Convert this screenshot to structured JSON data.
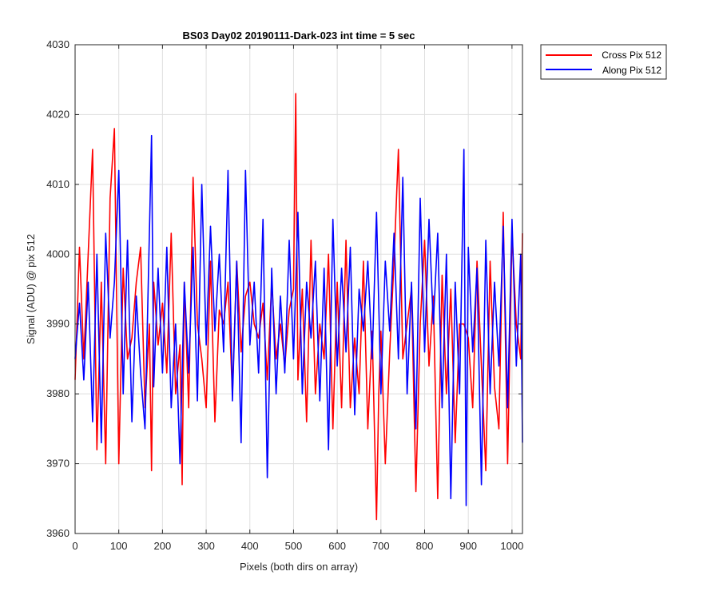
{
  "chart_data": {
    "type": "line",
    "title": "BS03 Day02 20190111-Dark-023 int time = 5 sec",
    "xlabel": "Pixels (both dirs on array)",
    "ylabel": "Signal (ADU) @ pix 512",
    "xlim": [
      0,
      1024
    ],
    "ylim": [
      3960,
      4030
    ],
    "xticks": [
      0,
      100,
      200,
      300,
      400,
      500,
      600,
      700,
      800,
      900,
      1000
    ],
    "yticks": [
      3960,
      3970,
      3980,
      3990,
      4000,
      4010,
      4020,
      4030
    ],
    "grid": true,
    "legend_position": "outside-top-right",
    "series": [
      {
        "name": "Cross Pix 512",
        "color": "#ff0000",
        "x": [
          0,
          10,
          20,
          30,
          40,
          50,
          60,
          70,
          80,
          90,
          100,
          110,
          120,
          130,
          140,
          150,
          160,
          170,
          175,
          180,
          190,
          200,
          210,
          220,
          230,
          240,
          245,
          250,
          260,
          270,
          280,
          290,
          300,
          310,
          320,
          330,
          340,
          350,
          360,
          370,
          380,
          390,
          400,
          410,
          420,
          430,
          440,
          450,
          460,
          470,
          480,
          490,
          500,
          505,
          510,
          520,
          530,
          540,
          550,
          560,
          570,
          580,
          590,
          600,
          610,
          620,
          630,
          640,
          650,
          660,
          670,
          680,
          690,
          695,
          700,
          710,
          720,
          730,
          740,
          750,
          760,
          770,
          780,
          790,
          800,
          810,
          820,
          830,
          840,
          850,
          860,
          870,
          880,
          890,
          900,
          910,
          920,
          930,
          940,
          950,
          960,
          970,
          980,
          990,
          1000,
          1010,
          1020,
          1024
        ],
        "y": [
          3982,
          4001,
          3985,
          4000,
          4015,
          3972,
          3996,
          3970,
          4008,
          4018,
          3970,
          3998,
          3985,
          3988,
          3996,
          4001,
          3978,
          3990,
          3969,
          3996,
          3987,
          3993,
          3983,
          4003,
          3980,
          3987,
          3967,
          3996,
          3978,
          4011,
          3990,
          3985,
          3978,
          3999,
          3976,
          3992,
          3990,
          3996,
          3980,
          3999,
          3986,
          3994,
          3996,
          3990,
          3988,
          3993,
          3982,
          3996,
          3985,
          3990,
          3984,
          3992,
          3995,
          4023,
          3982,
          3995,
          3976,
          4002,
          3980,
          3990,
          3985,
          4000,
          3975,
          3996,
          3978,
          4002,
          3978,
          3988,
          3980,
          3999,
          3975,
          3989,
          3962,
          3980,
          3989,
          3970,
          3986,
          3999,
          4015,
          3985,
          3990,
          3995,
          3966,
          3990,
          4002,
          3984,
          3994,
          3965,
          3997,
          3980,
          3995,
          3973,
          3990,
          3990,
          3988,
          3978,
          3999,
          3984,
          3969,
          3999,
          3981,
          3975,
          4006,
          3970,
          4003,
          3990,
          3985,
          4003
        ]
      },
      {
        "name": "Along Pix 512",
        "color": "#0000ff",
        "x": [
          0,
          10,
          20,
          30,
          40,
          50,
          60,
          70,
          80,
          90,
          100,
          110,
          120,
          130,
          140,
          150,
          160,
          170,
          175,
          180,
          190,
          200,
          210,
          220,
          230,
          240,
          250,
          260,
          270,
          280,
          290,
          300,
          310,
          320,
          330,
          340,
          350,
          360,
          370,
          380,
          390,
          400,
          410,
          420,
          430,
          440,
          450,
          460,
          470,
          480,
          490,
          500,
          510,
          520,
          530,
          540,
          550,
          560,
          570,
          580,
          590,
          600,
          610,
          620,
          630,
          640,
          650,
          660,
          670,
          680,
          690,
          700,
          710,
          720,
          730,
          740,
          750,
          760,
          770,
          780,
          790,
          800,
          810,
          820,
          830,
          840,
          850,
          860,
          870,
          880,
          890,
          895,
          900,
          910,
          920,
          930,
          940,
          950,
          960,
          970,
          980,
          990,
          1000,
          1010,
          1020,
          1024
        ],
        "y": [
          3985,
          3993,
          3982,
          3996,
          3976,
          4000,
          3973,
          4003,
          3988,
          3996,
          4012,
          3980,
          4002,
          3976,
          3994,
          3983,
          3975,
          4003,
          4017,
          3981,
          3998,
          3983,
          4001,
          3978,
          3990,
          3970,
          3996,
          3983,
          4001,
          3979,
          4010,
          3987,
          4004,
          3989,
          4000,
          3986,
          4012,
          3979,
          3999,
          3973,
          4012,
          3987,
          3996,
          3983,
          4005,
          3968,
          3998,
          3980,
          3994,
          3983,
          4002,
          3985,
          4006,
          3980,
          3996,
          3988,
          3999,
          3979,
          3998,
          3972,
          4005,
          3984,
          3998,
          3986,
          4001,
          3977,
          3995,
          3989,
          3999,
          3985,
          4006,
          3980,
          3999,
          3989,
          4003,
          3985,
          4011,
          3980,
          3996,
          3975,
          4008,
          3986,
          4005,
          3990,
          4003,
          3978,
          4000,
          3965,
          3996,
          3980,
          4015,
          3964,
          4001,
          3986,
          3998,
          3967,
          4002,
          3980,
          3996,
          3984,
          4004,
          3978,
          4005,
          3984,
          4000,
          3973
        ]
      }
    ]
  }
}
